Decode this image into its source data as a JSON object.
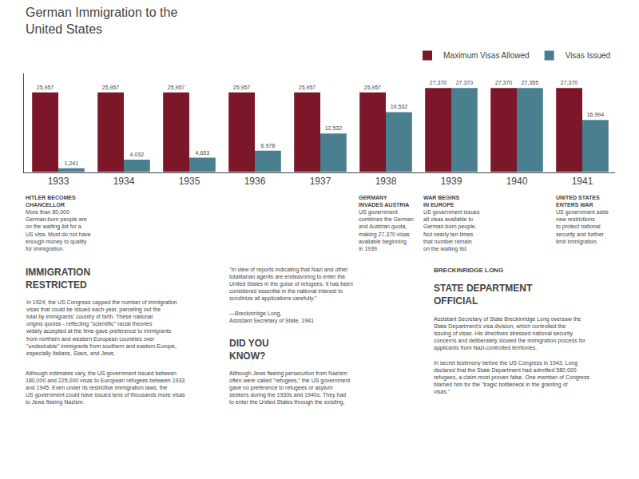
{
  "chart_data": {
    "type": "bar",
    "title": "German Immigration to the\nUnited States",
    "categories": [
      "1933",
      "1934",
      "1935",
      "1936",
      "1937",
      "1938",
      "1939",
      "1940",
      "1941"
    ],
    "series": [
      {
        "name": "Maximum Visas Allowed",
        "color": "#7B1728",
        "values": [
          25957,
          25957,
          25957,
          25957,
          25957,
          25957,
          27370,
          27370,
          27370
        ],
        "value_labels": [
          "25,957",
          "25,957",
          "25,957",
          "25,957",
          "25,957",
          "25,957",
          "27,370",
          "27,370",
          "27,370"
        ]
      },
      {
        "name": "Visas Issued",
        "color": "#4A7F8F",
        "values": [
          1241,
          4032,
          4653,
          6978,
          12532,
          19532,
          27370,
          27355,
          16994
        ],
        "value_labels": [
          "1,241",
          "4,032",
          "4,653",
          "6,978",
          "12,532",
          "19,532",
          "27,370",
          "27,355",
          "16,994"
        ]
      }
    ],
    "ylim": [
      0,
      32000
    ],
    "tick_labels": "x",
    "data_labels": true,
    "legend": "upper right",
    "grid": false,
    "annotations": [
      {
        "category": "1933",
        "title": "HITLER BECOMES\nCHANCELLOR",
        "text": "More than 80,000\nGerman-born people are\non the waiting list for a\nUS visa. Most do not have\nenough money to qualify\nfor immigration."
      },
      {
        "category": "1938",
        "title": "GERMANY\nINVADES AUSTRIA",
        "text": "US government\ncombines the German\nand Austrian quota,\nmaking 27,370 visas\navailable beginning\nin 1939."
      },
      {
        "category": "1939",
        "title": "WAR BEGINS\nIN EUROPE",
        "text": "US government issues\nall visas available to\nGerman-born people.\nNot nearly ten times\nthat number remain\non the waiting list."
      },
      {
        "category": "1941",
        "title": "UNITED STATES\nENTERS WAR",
        "text": "US government adds\nnew restrictions\nto protect national\nsecurity and further\nlimit immigration."
      },
      {
        "title": "IMMIGRATION\nRESTRICTED",
        "text": "In 1924, the US Congress capped the number of immigration visas that could be issued each year, parceling out the total by immigrants' country of birth. These national origins quotas - reflecting \"scientific\" racial theories widely accepted at the time-gave preference to immigrants from northern and western European countries over \"undesirable\" immigrants from southern and eastern Europe, especially Italians, Slavs, and Jews."
      },
      {
        "text": "Although estimates vary, the US government issued between 180,000 and 225,000 visas to European refugees between 1933 and 1945. Even under its restrictive immigration laws, the US government could have issued tens of thousands more visas to Jews fleeing Nazism."
      },
      {
        "text": "\"In view of reports indicating that Nazi and other\ntotalitarian agents are endeavoring to enter the\nUnited States in the guise of refugees, it has been\nconsidered essential in the national interest to\nscrutinize all applications carefully.\"\n\n—Breckinridge Long,\nAssistant Secretary of State, 1941"
      },
      {
        "label": "BRECKINRIDGE LONG",
        "title": "STATE DEPARTMENT\nOFFICIAL",
        "text": "Assistant Secretary of State Breckinridge Long oversaw the State Department's visa division, which controlled the issuing of visas. His directives stressed national security concerns and deliberately slowed the immigration process for applicants from Nazi-controlled territories.\n\nIn secret testimony before the US Congress in 1943, Long declared that the State Department had admitted 580,000 refugees, a claim most proven false. One member of Congress blamed him for the \"tragic bottleneck in the granting of visas.\""
      },
      {
        "title": "DID YOU\nKNOW?",
        "text": "Although Jews fleeing persecution from Nazism\noften were called \"refugees,\" the US government\ngave no preference to refugees or asylum\nseekers during the 1930s and 1940s. They had\nto enter the United States through the existing,"
      }
    ]
  }
}
